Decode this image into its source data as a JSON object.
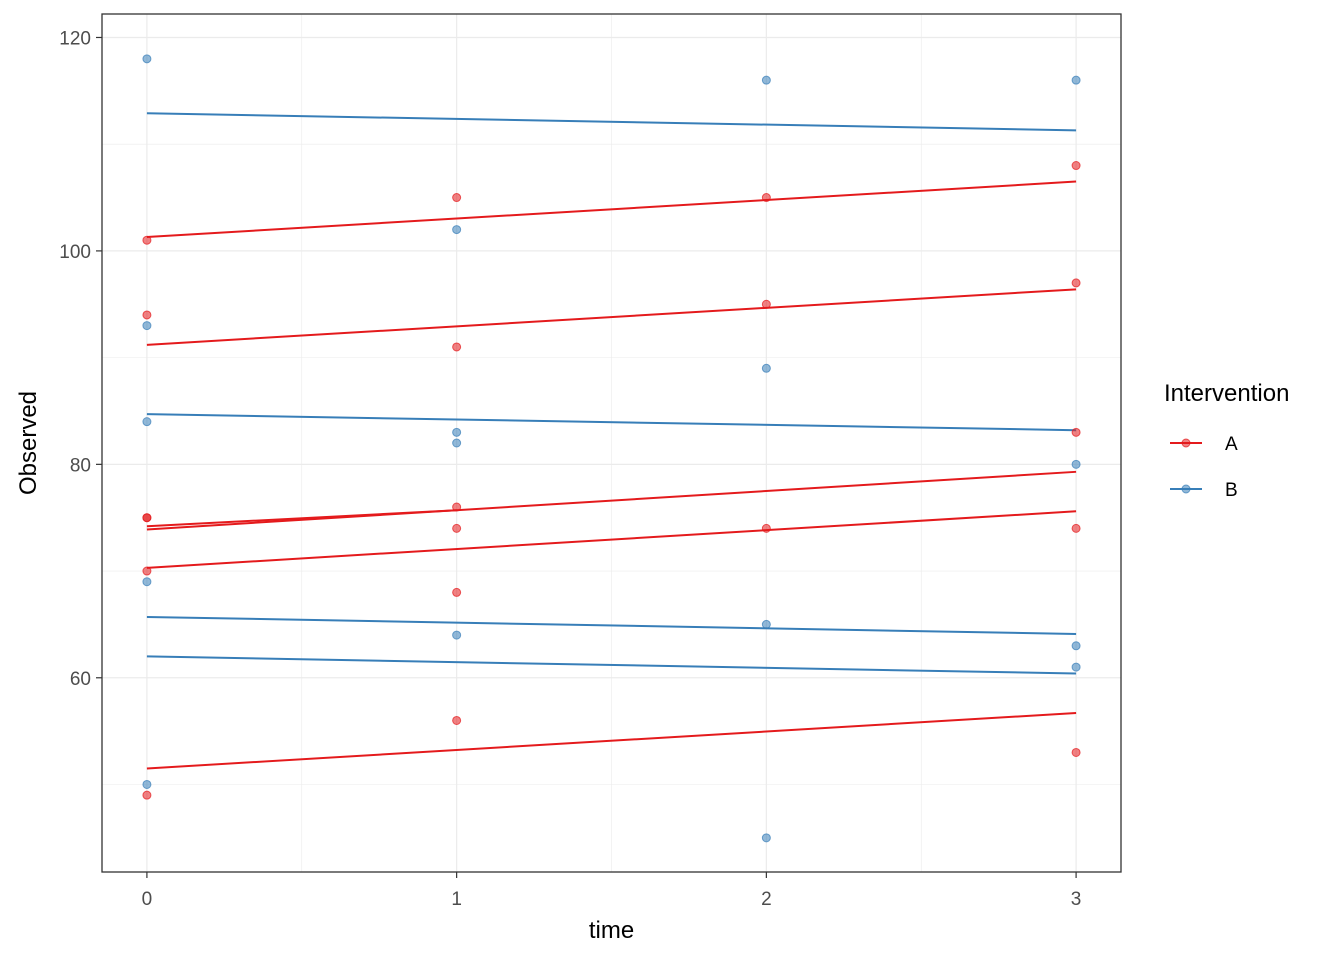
{
  "chart_data": {
    "type": "scatter",
    "title": "",
    "xlabel": "time",
    "ylabel": "Observed",
    "xlim": [
      -0.145,
      3.145
    ],
    "ylim": [
      41.8,
      122.2
    ],
    "x_ticks": [
      0,
      1,
      2,
      3
    ],
    "x_tick_labels": [
      "0",
      "1",
      "2",
      "3"
    ],
    "y_ticks": [
      60,
      80,
      100,
      120
    ],
    "y_tick_labels": [
      "60",
      "80",
      "100",
      "120"
    ],
    "grid": true,
    "legend": {
      "title": "Intervention",
      "placement": "right",
      "entries": [
        {
          "label": "A",
          "color": "#E41A1C"
        },
        {
          "label": "B",
          "color": "#377EB8"
        }
      ]
    },
    "series": [
      {
        "name": "A",
        "color": "#E41A1C",
        "points": [
          {
            "x": 0,
            "y": 101
          },
          {
            "x": 0,
            "y": 94
          },
          {
            "x": 0,
            "y": 75
          },
          {
            "x": 0,
            "y": 75
          },
          {
            "x": 0,
            "y": 70
          },
          {
            "x": 0,
            "y": 49
          },
          {
            "x": 1,
            "y": 105
          },
          {
            "x": 1,
            "y": 91
          },
          {
            "x": 1,
            "y": 76
          },
          {
            "x": 1,
            "y": 74
          },
          {
            "x": 1,
            "y": 68
          },
          {
            "x": 1,
            "y": 56
          },
          {
            "x": 2,
            "y": 105
          },
          {
            "x": 2,
            "y": 95
          },
          {
            "x": 2,
            "y": 74
          },
          {
            "x": 3,
            "y": 108
          },
          {
            "x": 3,
            "y": 97
          },
          {
            "x": 3,
            "y": 83
          },
          {
            "x": 3,
            "y": 74
          },
          {
            "x": 3,
            "y": 53
          }
        ],
        "lines": [
          {
            "x": [
              0,
              3
            ],
            "y": [
              101.3,
              106.5
            ]
          },
          {
            "x": [
              0,
              3
            ],
            "y": [
              91.2,
              96.4
            ]
          },
          {
            "x": [
              0,
              3
            ],
            "y": [
              73.9,
              79.3
            ]
          },
          {
            "x": [
              0,
              1
            ],
            "y": [
              74.2,
              75.7
            ]
          },
          {
            "x": [
              0,
              3
            ],
            "y": [
              70.3,
              75.6
            ]
          },
          {
            "x": [
              0,
              3
            ],
            "y": [
              51.5,
              56.7
            ]
          }
        ]
      },
      {
        "name": "B",
        "color": "#377EB8",
        "points": [
          {
            "x": 0,
            "y": 118
          },
          {
            "x": 0,
            "y": 93
          },
          {
            "x": 0,
            "y": 84
          },
          {
            "x": 0,
            "y": 69
          },
          {
            "x": 0,
            "y": 50
          },
          {
            "x": 1,
            "y": 102
          },
          {
            "x": 1,
            "y": 83
          },
          {
            "x": 1,
            "y": 82
          },
          {
            "x": 1,
            "y": 64
          },
          {
            "x": 2,
            "y": 116
          },
          {
            "x": 2,
            "y": 89
          },
          {
            "x": 2,
            "y": 65
          },
          {
            "x": 2,
            "y": 45
          },
          {
            "x": 3,
            "y": 116
          },
          {
            "x": 3,
            "y": 80
          },
          {
            "x": 3,
            "y": 63
          },
          {
            "x": 3,
            "y": 61
          }
        ],
        "lines": [
          {
            "x": [
              0,
              3
            ],
            "y": [
              112.9,
              111.3
            ]
          },
          {
            "x": [
              0,
              3
            ],
            "y": [
              84.7,
              83.2
            ]
          },
          {
            "x": [
              0,
              3
            ],
            "y": [
              65.7,
              64.1
            ]
          },
          {
            "x": [
              0,
              3
            ],
            "y": [
              62.0,
              60.4
            ]
          }
        ]
      }
    ]
  }
}
